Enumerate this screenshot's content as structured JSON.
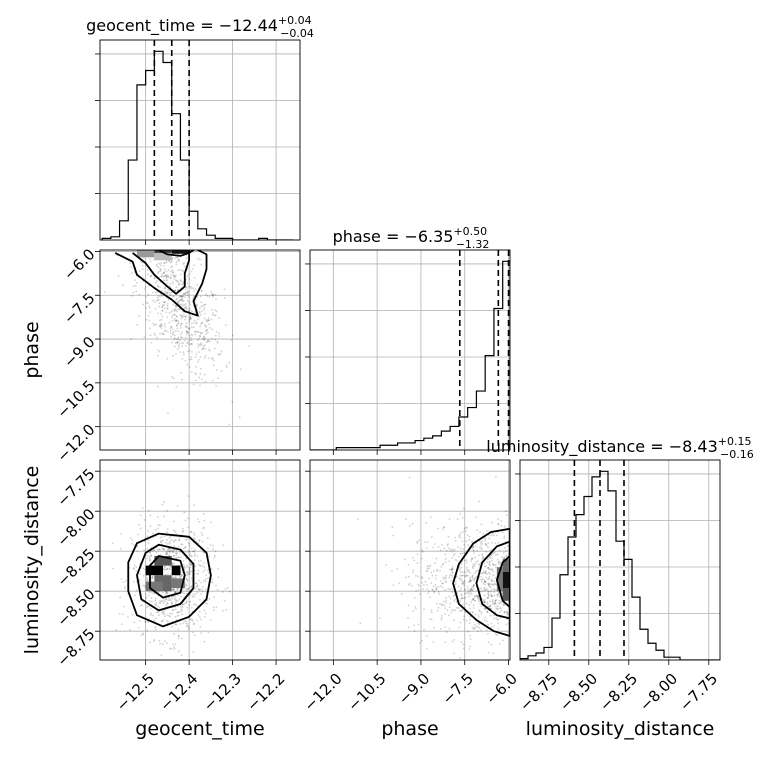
{
  "chart_data": {
    "type": "corner",
    "parameters": [
      "geocent_time",
      "phase",
      "luminosity_distance"
    ],
    "titles": [
      {
        "prefix": "geocent_time = ",
        "value": "−12.44",
        "plus": "+0.04",
        "minus": "−0.04"
      },
      {
        "prefix": "phase = ",
        "value": "−6.35",
        "plus": "+0.50",
        "minus": "−1.32"
      },
      {
        "prefix": "luminosity_distance = ",
        "value": "−8.43",
        "plus": "+0.15",
        "minus": "−0.16"
      }
    ],
    "ranges": {
      "geocent_time": [
        -12.605,
        -12.145
      ],
      "phase": [
        -12.8,
        -5.95
      ],
      "luminosity_distance": [
        -8.93,
        -7.68
      ]
    },
    "quantiles": {
      "geocent_time": [
        -12.48,
        -12.44,
        -12.4
      ],
      "phase": [
        -7.67,
        -6.35,
        -6.0
      ],
      "luminosity_distance": [
        -8.59,
        -8.43,
        -8.28
      ]
    },
    "ticks": {
      "geocent_time": {
        "values": [
          -12.5,
          -12.4,
          -12.3,
          -12.2
        ],
        "labels": [
          "−12.5",
          "−12.4",
          "−12.3",
          "−12.2"
        ]
      },
      "phase": {
        "values": [
          -12.0,
          -10.5,
          -9.0,
          -7.5,
          -6.0
        ],
        "labels": [
          "−12.0",
          "−10.5",
          "−9.0",
          "−7.5",
          "−6.0"
        ]
      },
      "luminosity_distance": {
        "values": [
          -8.75,
          -8.5,
          -8.25,
          -8.0,
          -7.75
        ],
        "labels": [
          "−8.75",
          "−8.50",
          "−8.25",
          "−8.00",
          "−7.75"
        ]
      }
    },
    "histograms": {
      "geocent_time": {
        "edges": [
          -12.6,
          -12.58,
          -12.56,
          -12.54,
          -12.52,
          -12.5,
          -12.48,
          -12.46,
          -12.44,
          -12.42,
          -12.4,
          -12.38,
          -12.36,
          -12.34,
          -12.32,
          -12.3,
          -12.28,
          -12.26,
          -12.24,
          -12.22,
          -12.2,
          -12.18,
          -12.16
        ],
        "counts": [
          1,
          2,
          12,
          50,
          97,
          106,
          118,
          111,
          79,
          50,
          18,
          7,
          3,
          1,
          1,
          0,
          0,
          0,
          1,
          0,
          0,
          0
        ]
      },
      "phase": {
        "edges": [
          -12.8,
          -12.5,
          -12.2,
          -11.9,
          -11.6,
          -11.3,
          -11.0,
          -10.7,
          -10.4,
          -10.1,
          -9.8,
          -9.5,
          -9.2,
          -8.9,
          -8.6,
          -8.3,
          -8.0,
          -7.7,
          -7.4,
          -7.1,
          -6.8,
          -6.5,
          -6.2,
          -5.95
        ],
        "counts": [
          0,
          0,
          0,
          1,
          1,
          1,
          1,
          1,
          2,
          2,
          3,
          3,
          4,
          5,
          6,
          8,
          10,
          14,
          18,
          25,
          40,
          60,
          80
        ]
      },
      "luminosity_distance": {
        "edges": [
          -8.93,
          -8.88,
          -8.83,
          -8.78,
          -8.73,
          -8.68,
          -8.63,
          -8.58,
          -8.53,
          -8.48,
          -8.43,
          -8.38,
          -8.33,
          -8.28,
          -8.23,
          -8.18,
          -8.13,
          -8.08,
          -8.03,
          -7.98,
          -7.93,
          -7.88,
          -7.83,
          -7.78,
          -7.73,
          -7.68
        ],
        "counts": [
          1,
          3,
          5,
          9,
          30,
          61,
          88,
          104,
          117,
          131,
          135,
          121,
          85,
          72,
          45,
          22,
          12,
          7,
          2,
          2,
          0,
          0,
          0,
          0,
          0
        ]
      }
    },
    "contours": {
      "phase_vs_geocent_time": [
        [
          [
            -12.57,
            -6.05
          ],
          [
            -12.53,
            -6.35
          ],
          [
            -12.52,
            -6.8
          ],
          [
            -12.48,
            -7.25
          ],
          [
            -12.44,
            -7.65
          ],
          [
            -12.41,
            -8.05
          ],
          [
            -12.38,
            -8.2
          ],
          [
            -12.39,
            -7.7
          ],
          [
            -12.37,
            -7.1
          ],
          [
            -12.36,
            -6.6
          ],
          [
            -12.36,
            -6.1
          ],
          [
            -12.38,
            -5.95
          ]
        ],
        [
          [
            -12.53,
            -6.05
          ],
          [
            -12.5,
            -6.4
          ],
          [
            -12.48,
            -6.8
          ],
          [
            -12.45,
            -7.2
          ],
          [
            -12.43,
            -7.45
          ],
          [
            -12.41,
            -7.2
          ],
          [
            -12.41,
            -6.75
          ],
          [
            -12.4,
            -6.3
          ],
          [
            -12.4,
            -5.95
          ]
        ],
        [
          [
            -12.47,
            -5.95
          ],
          [
            -12.45,
            -6.1
          ],
          [
            -12.42,
            -6.15
          ],
          [
            -12.4,
            -6.05
          ],
          [
            -12.39,
            -5.95
          ]
        ]
      ],
      "luminosity_distance_vs_geocent_time": [
        [
          [
            -12.47,
            -8.14
          ],
          [
            -12.52,
            -8.2
          ],
          [
            -12.54,
            -8.32
          ],
          [
            -12.54,
            -8.5
          ],
          [
            -12.52,
            -8.65
          ],
          [
            -12.46,
            -8.72
          ],
          [
            -12.4,
            -8.66
          ],
          [
            -12.36,
            -8.55
          ],
          [
            -12.35,
            -8.4
          ],
          [
            -12.36,
            -8.26
          ],
          [
            -12.4,
            -8.16
          ]
        ],
        [
          [
            -12.47,
            -8.21
          ],
          [
            -12.5,
            -8.26
          ],
          [
            -12.52,
            -8.4
          ],
          [
            -12.51,
            -8.55
          ],
          [
            -12.47,
            -8.62
          ],
          [
            -12.42,
            -8.58
          ],
          [
            -12.39,
            -8.48
          ],
          [
            -12.39,
            -8.33
          ],
          [
            -12.42,
            -8.24
          ]
        ],
        [
          [
            -12.47,
            -8.28
          ],
          [
            -12.49,
            -8.34
          ],
          [
            -12.49,
            -8.48
          ],
          [
            -12.46,
            -8.54
          ],
          [
            -12.42,
            -8.51
          ],
          [
            -12.41,
            -8.4
          ],
          [
            -12.42,
            -8.31
          ]
        ]
      ],
      "luminosity_distance_vs_phase": [
        [
          [
            -5.95,
            -8.11
          ],
          [
            -6.6,
            -8.13
          ],
          [
            -7.2,
            -8.2
          ],
          [
            -7.7,
            -8.33
          ],
          [
            -7.9,
            -8.45
          ],
          [
            -7.7,
            -8.58
          ],
          [
            -7.1,
            -8.68
          ],
          [
            -6.5,
            -8.75
          ],
          [
            -5.95,
            -8.78
          ]
        ],
        [
          [
            -5.95,
            -8.19
          ],
          [
            -6.4,
            -8.22
          ],
          [
            -6.9,
            -8.32
          ],
          [
            -7.1,
            -8.45
          ],
          [
            -6.9,
            -8.58
          ],
          [
            -6.4,
            -8.65
          ],
          [
            -5.95,
            -8.67
          ]
        ],
        [
          [
            -5.95,
            -8.28
          ],
          [
            -6.2,
            -8.32
          ],
          [
            -6.4,
            -8.43
          ],
          [
            -6.2,
            -8.56
          ],
          [
            -5.95,
            -8.6
          ]
        ]
      ]
    },
    "density_blocks": {
      "phase_vs_geocent_time": [
        {
          "x": [
            -12.48,
            -12.44
          ],
          "y": [
            -6.05,
            -5.95
          ],
          "shade": "#333333"
        },
        {
          "x": [
            -12.44,
            -12.4
          ],
          "y": [
            -6.08,
            -5.95
          ],
          "shade": "#111111"
        },
        {
          "x": [
            -12.52,
            -12.48
          ],
          "y": [
            -6.2,
            -5.95
          ],
          "shade": "#9a9a9a"
        },
        {
          "x": [
            -12.48,
            -12.44
          ],
          "y": [
            -6.3,
            -6.05
          ],
          "shade": "#bdbdbd"
        }
      ],
      "luminosity_distance_vs_geocent_time": [
        {
          "x": [
            -12.5,
            -12.46
          ],
          "y": [
            -8.4,
            -8.34
          ],
          "shade": "#000000"
        },
        {
          "x": [
            -12.44,
            -12.42
          ],
          "y": [
            -8.4,
            -8.34
          ],
          "shade": "#000000"
        },
        {
          "x": [
            -12.48,
            -12.44
          ],
          "y": [
            -8.34,
            -8.28
          ],
          "shade": "#555555"
        },
        {
          "x": [
            -12.48,
            -12.44
          ],
          "y": [
            -8.5,
            -8.4
          ],
          "shade": "#666666"
        },
        {
          "x": [
            -12.5,
            -12.46
          ],
          "y": [
            -8.5,
            -8.44
          ],
          "shade": "#777777"
        },
        {
          "x": [
            -12.44,
            -12.41
          ],
          "y": [
            -8.48,
            -8.42
          ],
          "shade": "#777777"
        }
      ],
      "luminosity_distance_vs_phase": [
        {
          "x": [
            -6.2,
            -5.95
          ],
          "y": [
            -8.48,
            -8.38
          ],
          "shade": "#111111"
        },
        {
          "x": [
            -6.4,
            -6.2
          ],
          "y": [
            -8.5,
            -8.35
          ],
          "shade": "#777777"
        },
        {
          "x": [
            -6.2,
            -5.95
          ],
          "y": [
            -8.56,
            -8.48
          ],
          "shade": "#555555"
        },
        {
          "x": [
            -6.2,
            -5.95
          ],
          "y": [
            -8.38,
            -8.3
          ],
          "shade": "#666666"
        }
      ]
    },
    "scatter_clouds": {
      "phase_vs_geocent_time": {
        "center": [
          -12.42,
          -8.2
        ],
        "spread": [
          0.05,
          1.3
        ],
        "correlation": -0.55,
        "n": 700
      },
      "luminosity_distance_vs_geocent_time": {
        "center": [
          -12.44,
          -8.43
        ],
        "spread": [
          0.045,
          0.18
        ],
        "correlation": 0.0,
        "n": 900
      },
      "luminosity_distance_vs_phase": {
        "center": [
          -7.0,
          -8.43
        ],
        "spread": [
          1.4,
          0.18
        ],
        "correlation": 0.0,
        "n": 900
      }
    },
    "grid": true,
    "colors": {
      "line": "#000000",
      "grid": "#b0b0b0",
      "scatter": "#000000"
    }
  }
}
